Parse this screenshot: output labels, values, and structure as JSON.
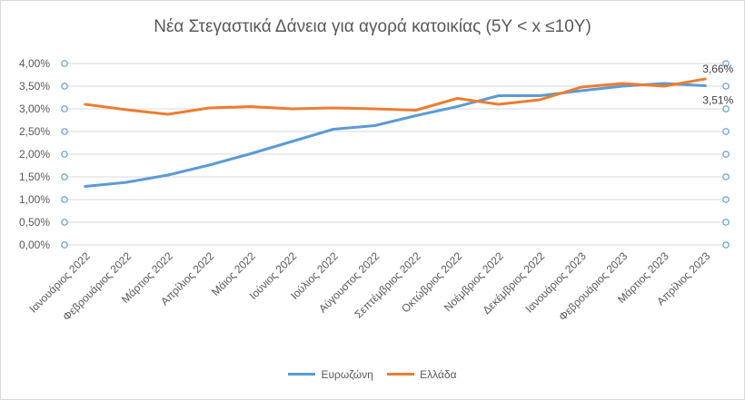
{
  "chart_data": {
    "type": "line",
    "title": "Νέα Στεγαστικά Δάνεια για αγορά κατοικίας (5Y < x ≤10Y)",
    "categories": [
      "Ιανουάριος 2022",
      "Φεβρουάριος 2022",
      "Μάρτιος 2022",
      "Απρίλιος 2022",
      "Μάιος 2022",
      "Ιούνιος 2022",
      "Ιούλιος 2022",
      "Αύγουστος 2022",
      "Σεπτέμβριος 2022",
      "Οκτώβριος 2022",
      "Νοέμβριος 2022",
      "Δεκέμβριος 2022",
      "Ιανουάριος 2023",
      "Φεβρουάριος 2023",
      "Μάρτιος 2023",
      "Απρίλιος 2023"
    ],
    "series": [
      {
        "name": "Ευρωζώνη",
        "color": "#5b9bd5",
        "values": [
          1.29,
          1.38,
          1.54,
          1.76,
          2.01,
          2.28,
          2.55,
          2.63,
          2.85,
          3.05,
          3.29,
          3.29,
          3.4,
          3.5,
          3.56,
          3.51
        ]
      },
      {
        "name": "Ελλάδα",
        "color": "#ed7d31",
        "values": [
          3.1,
          2.98,
          2.88,
          3.02,
          3.05,
          3.0,
          3.02,
          3.0,
          2.97,
          3.23,
          3.1,
          3.2,
          3.48,
          3.56,
          3.5,
          3.66
        ]
      }
    ],
    "ylim": [
      0,
      4
    ],
    "yticks": [
      "0,00%",
      "0,50%",
      "1,00%",
      "1,50%",
      "2,00%",
      "2,50%",
      "3,00%",
      "3,50%",
      "4,00%"
    ],
    "grid": true,
    "legend_position": "bottom",
    "data_labels": [
      {
        "series": 1,
        "index": 15,
        "text": "3,66%"
      },
      {
        "series": 0,
        "index": 15,
        "text": "3,51%"
      }
    ]
  }
}
